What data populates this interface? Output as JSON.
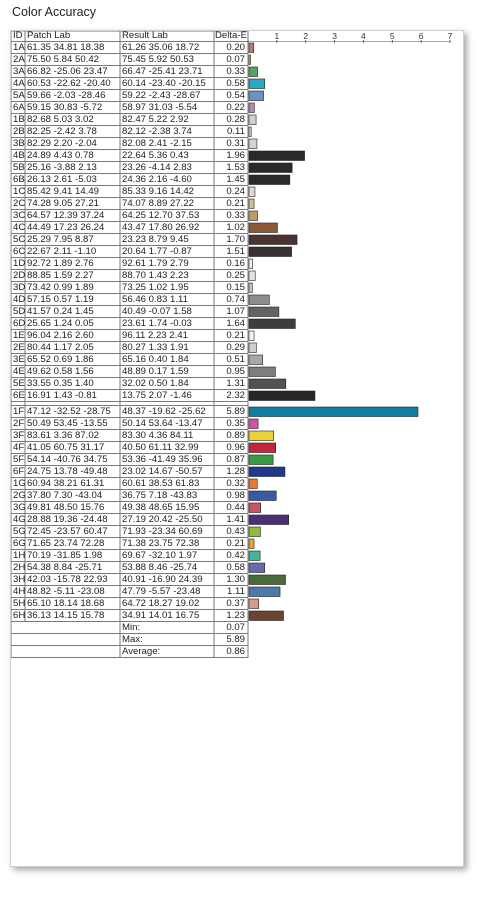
{
  "title": "Color Accuracy",
  "headers": {
    "id": "ID",
    "patch": "Patch Lab",
    "result": "Result Lab",
    "delta": "Delta-E"
  },
  "chart_data": {
    "type": "bar",
    "orientation": "horizontal",
    "xlim": [
      0,
      7
    ],
    "xticks": [
      "1",
      "2",
      "3",
      "4",
      "5",
      "6",
      "7"
    ],
    "categories": [
      "1A",
      "2A",
      "3A",
      "4A",
      "5A",
      "6A",
      "1B",
      "2B",
      "3B",
      "4B",
      "5B",
      "6B",
      "1C",
      "2C",
      "3C",
      "4C",
      "5C",
      "6C",
      "1D",
      "2D",
      "3D",
      "4D",
      "5D",
      "6D",
      "1E",
      "2E",
      "3E",
      "4E",
      "5E",
      "6E",
      "1F",
      "2F",
      "3F",
      "4F",
      "5F",
      "6F",
      "1G",
      "2G",
      "3G",
      "4G",
      "5G",
      "6G",
      "1H",
      "2H",
      "3H",
      "4H",
      "5H",
      "6H"
    ],
    "patch_lab": [
      "61.35 34.81 18.38",
      "75.50 5.84 50.42",
      "66.82 -25.06 23.47",
      "60.53 -22.62 -20.40",
      "59.66 -2.03 -28.46",
      "59.15 30.83 -5.72",
      "82.68 5.03 3.02",
      "82.25 -2.42 3.78",
      "82.29 2.20 -2.04",
      "24.89 4.43 0.78",
      "25.16 -3.88 2.13",
      "26.13 2.61 -5.03",
      "85.42 9.41 14.49",
      "74.28 9.05 27.21",
      "64.57 12.39 37.24",
      "44.49 17.23 26.24",
      "25.29 7.95 8.87",
      "22.67 2.11 -1.10",
      "92.72 1.89 2.76",
      "88.85 1.59 2.27",
      "73.42 0.99 1.89",
      "57.15 0.57 1.19",
      "41.57 0.24 1.45",
      "25.65 1.24 0.05",
      "96.04 2.16 2.60",
      "80.44 1.17 2.05",
      "65.52 0.69 1.86",
      "49.62 0.58 1.56",
      "33.55 0.35 1.40",
      "16.91 1.43 -0.81",
      "47.12 -32.52 -28.75",
      "50.49 53.45 -13.55",
      "83.61 3.36 87.02",
      "41.05 60.75 31.17",
      "54.14 -40.76 34.75",
      "24.75 13.78 -49.48",
      "60.94 38.21 61.31",
      "37.80 7.30 -43.04",
      "49.81 48.50 15.76",
      "28.88 19.36 -24.48",
      "72.45 -23.57 60.47",
      "71.65 23.74 72.28",
      "70.19 -31.85 1.98",
      "54.38 8.84 -25.71",
      "42.03 -15.78 22.93",
      "48.82 -5.11 -23.08",
      "65.10 18.14 18.68",
      "36.13 14.15 15.78"
    ],
    "result_lab": [
      "61.26 35.06 18.72",
      "75.45 5.92 50.53",
      "66.47 -25.41 23.71",
      "60.14 -23.40 -20.15",
      "59.22 -2.43 -28.67",
      "58.97 31.03 -5.54",
      "82.47 5.22 2.92",
      "82.12 -2.38 3.74",
      "82.08 2.41 -2.15",
      "22.64 5.36 0.43",
      "23.26 -4.14 2.83",
      "24.36 2.16 -4.60",
      "85.33 9.16 14.42",
      "74.07 8.89 27.22",
      "64.25 12.70 37.53",
      "43.47 17.80 26.92",
      "23.23 8.79 9.45",
      "20.64 1.77 -0.87",
      "92.61 1.79 2.79",
      "88.70 1.43 2.23",
      "73.25 1.02 1.95",
      "56.46 0.83 1.11",
      "40.49 -0.07 1.58",
      "23.61 1.74 -0.03",
      "96.11 2.23 2.41",
      "80.27 1.33 1.91",
      "65.16 0.40 1.84",
      "48.89 0.17 1.59",
      "32.02 0.50 1.84",
      "13.75 2.07 -1.46",
      "48.37 -19.62 -25.62",
      "50.14 53.64 -13.47",
      "83.30 4.36 84.11",
      "40.50 61.11 32.99",
      "53.36 -41.49 35.96",
      "23.02 14.67 -50.57",
      "60.61 38.53 61.83",
      "36.75 7.18 -43.83",
      "49.38 48.65 15.95",
      "27.19 20.42 -25.50",
      "71.93 -23.34 60.69",
      "71.38 23.75 72.38",
      "69.67 -32.10 1.97",
      "53.88 8.46 -25.74",
      "40.91 -16.90 24.39",
      "47.79 -5.57 -23.48",
      "64.72 18.27 19.02",
      "34.91 14.01 16.75"
    ],
    "values": [
      "0.20",
      "0.07",
      "0.33",
      "0.58",
      "0.54",
      "0.22",
      "0.28",
      "0.11",
      "0.31",
      "1.96",
      "1.53",
      "1.45",
      "0.24",
      "0.21",
      "0.33",
      "1.02",
      "1.70",
      "1.51",
      "0.16",
      "0.25",
      "0.15",
      "0.74",
      "1.07",
      "1.64",
      "0.21",
      "0.29",
      "0.51",
      "0.95",
      "1.31",
      "2.32",
      "5.89",
      "0.35",
      "0.89",
      "0.96",
      "0.87",
      "1.28",
      "0.32",
      "0.98",
      "0.44",
      "1.41",
      "0.43",
      "0.21",
      "0.42",
      "0.58",
      "1.30",
      "1.11",
      "0.37",
      "1.23"
    ],
    "colors": [
      "#b87b6f",
      "#c7b48a",
      "#5b9e63",
      "#2aa8c4",
      "#6c8fc4",
      "#b98aa6",
      "#d7cfcc",
      "#d3d3d0",
      "#d6d3d6",
      "#2a2a2a",
      "#2a2a2a",
      "#2a2a2a",
      "#ecd7cb",
      "#d8b994",
      "#c39a63",
      "#8a5a38",
      "#4a3432",
      "#3a3232",
      "#ececec",
      "#e2e2e2",
      "#c2c2c2",
      "#8c8c8c",
      "#636363",
      "#3d3d3d",
      "#f2f2f2",
      "#cfcfcf",
      "#a8a8a8",
      "#7d7d7d",
      "#525252",
      "#272727",
      "#10809f",
      "#d054a3",
      "#ecd23a",
      "#c4263a",
      "#3a9a45",
      "#1f3a8c",
      "#e9782a",
      "#3a5aa8",
      "#c9546a",
      "#4a2f76",
      "#92b83c",
      "#e8a52a",
      "#3fb59b",
      "#6a6aaa",
      "#4a6b38",
      "#4f79a8",
      "#d69a8c",
      "#6a4332"
    ]
  },
  "summary": [
    {
      "label": "Min:",
      "value": "0.07"
    },
    {
      "label": "Max:",
      "value": "5.89"
    },
    {
      "label": "Average:",
      "value": "0.86"
    }
  ]
}
